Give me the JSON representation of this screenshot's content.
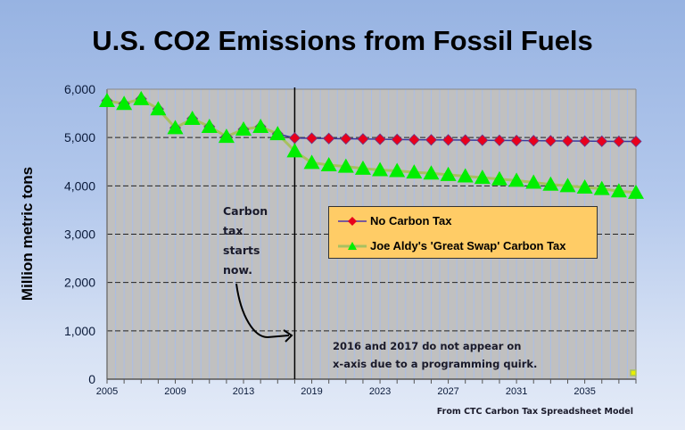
{
  "chart_data": {
    "type": "line",
    "title": "U.S. CO2 Emissions from Fossil Fuels",
    "xlabel": "",
    "ylabel": "Million metric tons",
    "ylim": [
      0,
      6000
    ],
    "yticks": [
      "0",
      "1,000",
      "2,000",
      "3,000",
      "4,000",
      "5,000",
      "6,000"
    ],
    "ytick_values": [
      0,
      1000,
      2000,
      3000,
      4000,
      5000,
      6000
    ],
    "categories": [
      2005,
      2006,
      2007,
      2008,
      2009,
      2010,
      2011,
      2012,
      2013,
      2014,
      2015,
      2018,
      2019,
      2020,
      2021,
      2022,
      2023,
      2024,
      2025,
      2026,
      2027,
      2028,
      2029,
      2030,
      2031,
      2032,
      2033,
      2034,
      2035,
      2036,
      2037,
      2038
    ],
    "xtick_labels": [
      "2005",
      "2009",
      "2013",
      "2019",
      "2023",
      "2027",
      "2031",
      "2035"
    ],
    "xtick_label_every": 4,
    "grid": {
      "horizontal": true,
      "vertical": true
    },
    "legend_placement": "center-right",
    "series": [
      {
        "name": "No Carbon Tax",
        "color": "#e8001c",
        "line_color": "#3a3a9a",
        "marker": "diamond",
        "values": [
          5760,
          5700,
          5800,
          5590,
          5200,
          5390,
          5225,
          5020,
          5170,
          5225,
          5075,
          4990,
          4985,
          4980,
          4975,
          4970,
          4965,
          4960,
          4955,
          4952,
          4950,
          4947,
          4944,
          4941,
          4938,
          4935,
          4932,
          4929,
          4926,
          4923,
          4921,
          4920
        ]
      },
      {
        "name": "Joe Aldy's 'Great Swap' Carbon Tax",
        "color": "#00ee00",
        "line_color": "#a8c060",
        "marker": "triangle",
        "values": [
          5760,
          5700,
          5800,
          5590,
          5200,
          5390,
          5225,
          5020,
          5170,
          5225,
          5075,
          4720,
          4480,
          4430,
          4400,
          4360,
          4330,
          4310,
          4280,
          4260,
          4230,
          4200,
          4170,
          4140,
          4110,
          4070,
          4030,
          4000,
          3970,
          3940,
          3890,
          3860
        ]
      }
    ],
    "annotations": {
      "tax_start": [
        "Carbon",
        "tax",
        "starts",
        "now."
      ],
      "tax_start_category": 2018,
      "quirk": [
        "2016 and 2017 do not appear on",
        "x-axis  due to a programming quirk."
      ],
      "source": "From CTC Carbon Tax Spreadsheet Model"
    }
  }
}
